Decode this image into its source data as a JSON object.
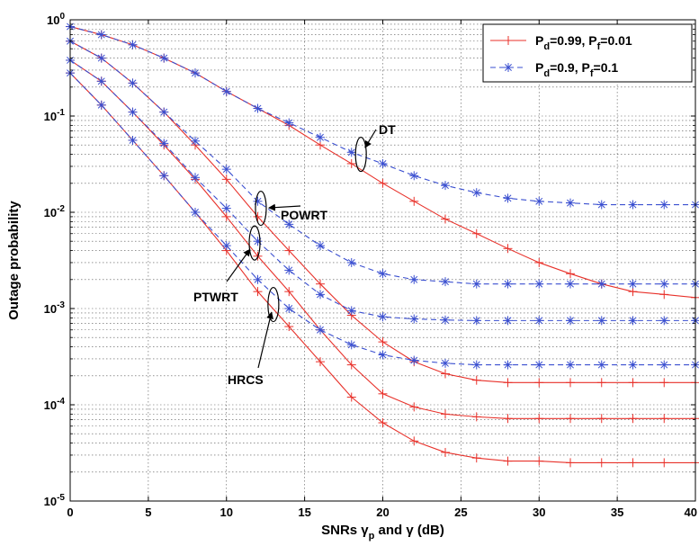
{
  "chart_data": {
    "type": "line",
    "xlabel": "SNRs γ_p and γ (dB)",
    "ylabel": "Outage probability",
    "xlim": [
      0,
      40
    ],
    "ylim": [
      1e-05,
      1
    ],
    "yscale": "log",
    "grid": true,
    "legend_position": "top-right",
    "x_ticks": [
      "0",
      "5",
      "10",
      "15",
      "20",
      "25",
      "30",
      "35",
      "40"
    ],
    "y_ticks": [
      {
        "base": "10",
        "exp": "0"
      },
      {
        "base": "10",
        "exp": "-1"
      },
      {
        "base": "10",
        "exp": "-2"
      },
      {
        "base": "10",
        "exp": "-3"
      },
      {
        "base": "10",
        "exp": "-4"
      },
      {
        "base": "10",
        "exp": "-5"
      }
    ],
    "x": [
      0,
      2,
      4,
      6,
      8,
      10,
      12,
      14,
      16,
      18,
      20,
      22,
      24,
      26,
      28,
      30,
      32,
      34,
      36,
      38,
      40
    ],
    "legend": [
      {
        "style": "solid",
        "color": "#e8312a",
        "marker": "plus",
        "P": "P",
        "d": "d",
        "vd": "=0.99, ",
        "f": "f",
        "vf": "=0.01"
      },
      {
        "style": "dashed",
        "color": "#3a4fd0",
        "marker": "star",
        "P": "P",
        "d": "d",
        "vd": "=0.9, ",
        "f": "f",
        "vf": "=0.1"
      }
    ],
    "series": [
      {
        "group": "DT",
        "legend_index": 0,
        "color": "#e8312a",
        "style": "solid",
        "marker": "plus",
        "values": [
          0.85,
          0.7,
          0.55,
          0.4,
          0.28,
          0.18,
          0.12,
          0.08,
          0.05,
          0.032,
          0.02,
          0.013,
          0.0085,
          0.006,
          0.0042,
          0.003,
          0.0023,
          0.0018,
          0.0015,
          0.0014,
          0.0013
        ]
      },
      {
        "group": "DT",
        "legend_index": 1,
        "color": "#3a4fd0",
        "style": "dashed",
        "marker": "star",
        "values": [
          0.85,
          0.7,
          0.55,
          0.4,
          0.28,
          0.18,
          0.12,
          0.085,
          0.06,
          0.042,
          0.032,
          0.024,
          0.019,
          0.016,
          0.014,
          0.013,
          0.0125,
          0.012,
          0.012,
          0.012,
          0.012
        ]
      },
      {
        "group": "POWRT",
        "legend_index": 0,
        "color": "#e8312a",
        "style": "solid",
        "marker": "plus",
        "values": [
          0.6,
          0.4,
          0.22,
          0.11,
          0.05,
          0.022,
          0.009,
          0.004,
          0.0018,
          0.00085,
          0.00045,
          0.00028,
          0.00021,
          0.00018,
          0.00017,
          0.00017,
          0.00017,
          0.00017,
          0.00017,
          0.00017,
          0.00017
        ]
      },
      {
        "group": "POWRT",
        "legend_index": 1,
        "color": "#3a4fd0",
        "style": "dashed",
        "marker": "star",
        "values": [
          0.6,
          0.4,
          0.22,
          0.11,
          0.055,
          0.028,
          0.013,
          0.0075,
          0.0045,
          0.003,
          0.0023,
          0.002,
          0.0019,
          0.0018,
          0.0018,
          0.0018,
          0.0018,
          0.0018,
          0.0018,
          0.0018,
          0.0018
        ]
      },
      {
        "group": "PTWRT",
        "legend_index": 0,
        "color": "#e8312a",
        "style": "solid",
        "marker": "plus",
        "values": [
          0.38,
          0.23,
          0.11,
          0.05,
          0.022,
          0.009,
          0.0035,
          0.0015,
          0.0006,
          0.00026,
          0.00013,
          9.5e-05,
          8e-05,
          7.5e-05,
          7.2e-05,
          7.2e-05,
          7.2e-05,
          7.2e-05,
          7.2e-05,
          7.2e-05,
          7.2e-05
        ]
      },
      {
        "group": "PTWRT",
        "legend_index": 1,
        "color": "#3a4fd0",
        "style": "dashed",
        "marker": "star",
        "values": [
          0.38,
          0.23,
          0.11,
          0.052,
          0.023,
          0.011,
          0.005,
          0.0025,
          0.0014,
          0.00095,
          0.00082,
          0.00078,
          0.00076,
          0.00075,
          0.00075,
          0.00075,
          0.00075,
          0.00075,
          0.00075,
          0.00075,
          0.00075
        ]
      },
      {
        "group": "HRCS",
        "legend_index": 0,
        "color": "#e8312a",
        "style": "solid",
        "marker": "plus",
        "values": [
          0.28,
          0.13,
          0.056,
          0.024,
          0.01,
          0.004,
          0.0015,
          0.00065,
          0.00028,
          0.00012,
          6.5e-05,
          4.2e-05,
          3.2e-05,
          2.8e-05,
          2.6e-05,
          2.6e-05,
          2.5e-05,
          2.5e-05,
          2.5e-05,
          2.5e-05,
          2.5e-05
        ]
      },
      {
        "group": "HRCS",
        "legend_index": 1,
        "color": "#3a4fd0",
        "style": "dashed",
        "marker": "star",
        "values": [
          0.28,
          0.13,
          0.056,
          0.024,
          0.01,
          0.0045,
          0.002,
          0.001,
          0.0006,
          0.00042,
          0.00033,
          0.00029,
          0.00027,
          0.00026,
          0.00026,
          0.00026,
          0.00026,
          0.00026,
          0.00026,
          0.00026,
          0.00026
        ]
      }
    ],
    "annotations": [
      {
        "text": "DT",
        "at_x": 18.6,
        "at_y": 0.04
      },
      {
        "text": "POWRT",
        "at_x": 12.2,
        "at_y": 0.011
      },
      {
        "text": "PTWRT",
        "at_x": 11.8,
        "at_y": 0.0048
      },
      {
        "text": "HRCS",
        "at_x": 13.0,
        "at_y": 0.0011
      }
    ]
  }
}
